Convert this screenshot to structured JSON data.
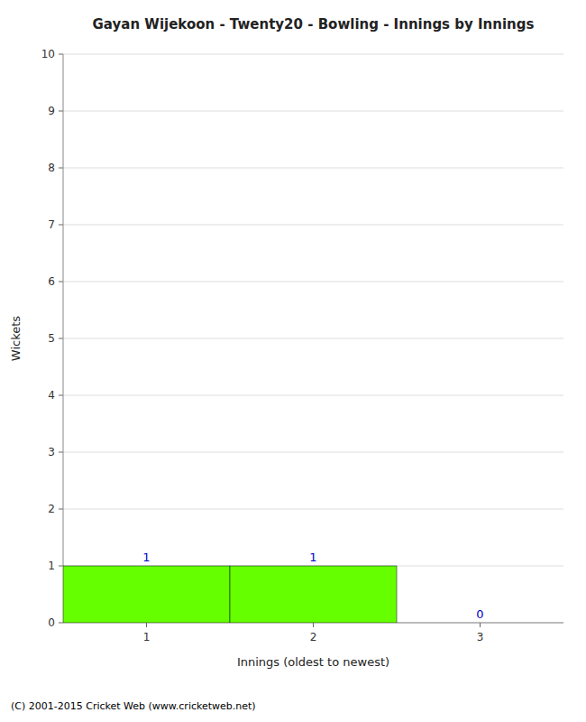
{
  "chart_data": {
    "type": "bar",
    "title": "Gayan Wijekoon - Twenty20 - Bowling - Innings by Innings",
    "xlabel": "Innings (oldest to newest)",
    "ylabel": "Wickets",
    "categories": [
      1,
      2,
      3
    ],
    "values": [
      1,
      1,
      0
    ],
    "color": "#66ff00",
    "ylim": [
      0,
      10
    ],
    "yticks": [
      0,
      1,
      2,
      3,
      4,
      5,
      6,
      7,
      8,
      9,
      10
    ],
    "grid": true,
    "data_labels": true,
    "annotations": [
      "(C) 2001-2015 Cricket Web (www.cricketweb.net)"
    ]
  }
}
